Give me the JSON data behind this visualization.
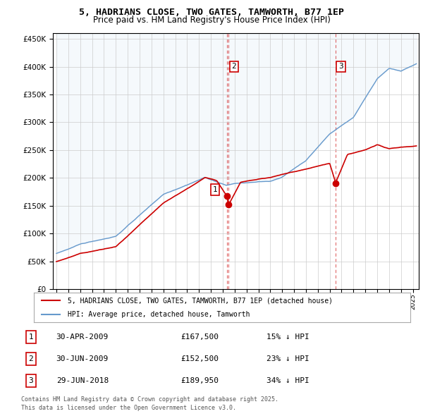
{
  "title": "5, HADRIANS CLOSE, TWO GATES, TAMWORTH, B77 1EP",
  "subtitle": "Price paid vs. HM Land Registry's House Price Index (HPI)",
  "legend_line1": "5, HADRIANS CLOSE, TWO GATES, TAMWORTH, B77 1EP (detached house)",
  "legend_line2": "HPI: Average price, detached house, Tamworth",
  "footer_line1": "Contains HM Land Registry data © Crown copyright and database right 2025.",
  "footer_line2": "This data is licensed under the Open Government Licence v3.0.",
  "transactions": [
    {
      "num": 1,
      "date": "30-APR-2009",
      "price": "£167,500",
      "note": "15% ↓ HPI"
    },
    {
      "num": 2,
      "date": "30-JUN-2009",
      "price": "£152,500",
      "note": "23% ↓ HPI"
    },
    {
      "num": 3,
      "date": "29-JUN-2018",
      "price": "£189,950",
      "note": "34% ↓ HPI"
    }
  ],
  "t1_x": 2009.33,
  "t2_x": 2009.5,
  "t3_x": 2018.5,
  "t1_y": 167500,
  "t2_y": 152500,
  "t3_y": 189950,
  "red_color": "#cc0000",
  "blue_color": "#6699cc",
  "background_color": "#ffffff",
  "grid_color": "#cccccc",
  "ylim": [
    0,
    460000
  ],
  "xlim_start": 1994.7,
  "xlim_end": 2025.5,
  "yticks": [
    0,
    50000,
    100000,
    150000,
    200000,
    250000,
    300000,
    350000,
    400000,
    450000
  ]
}
